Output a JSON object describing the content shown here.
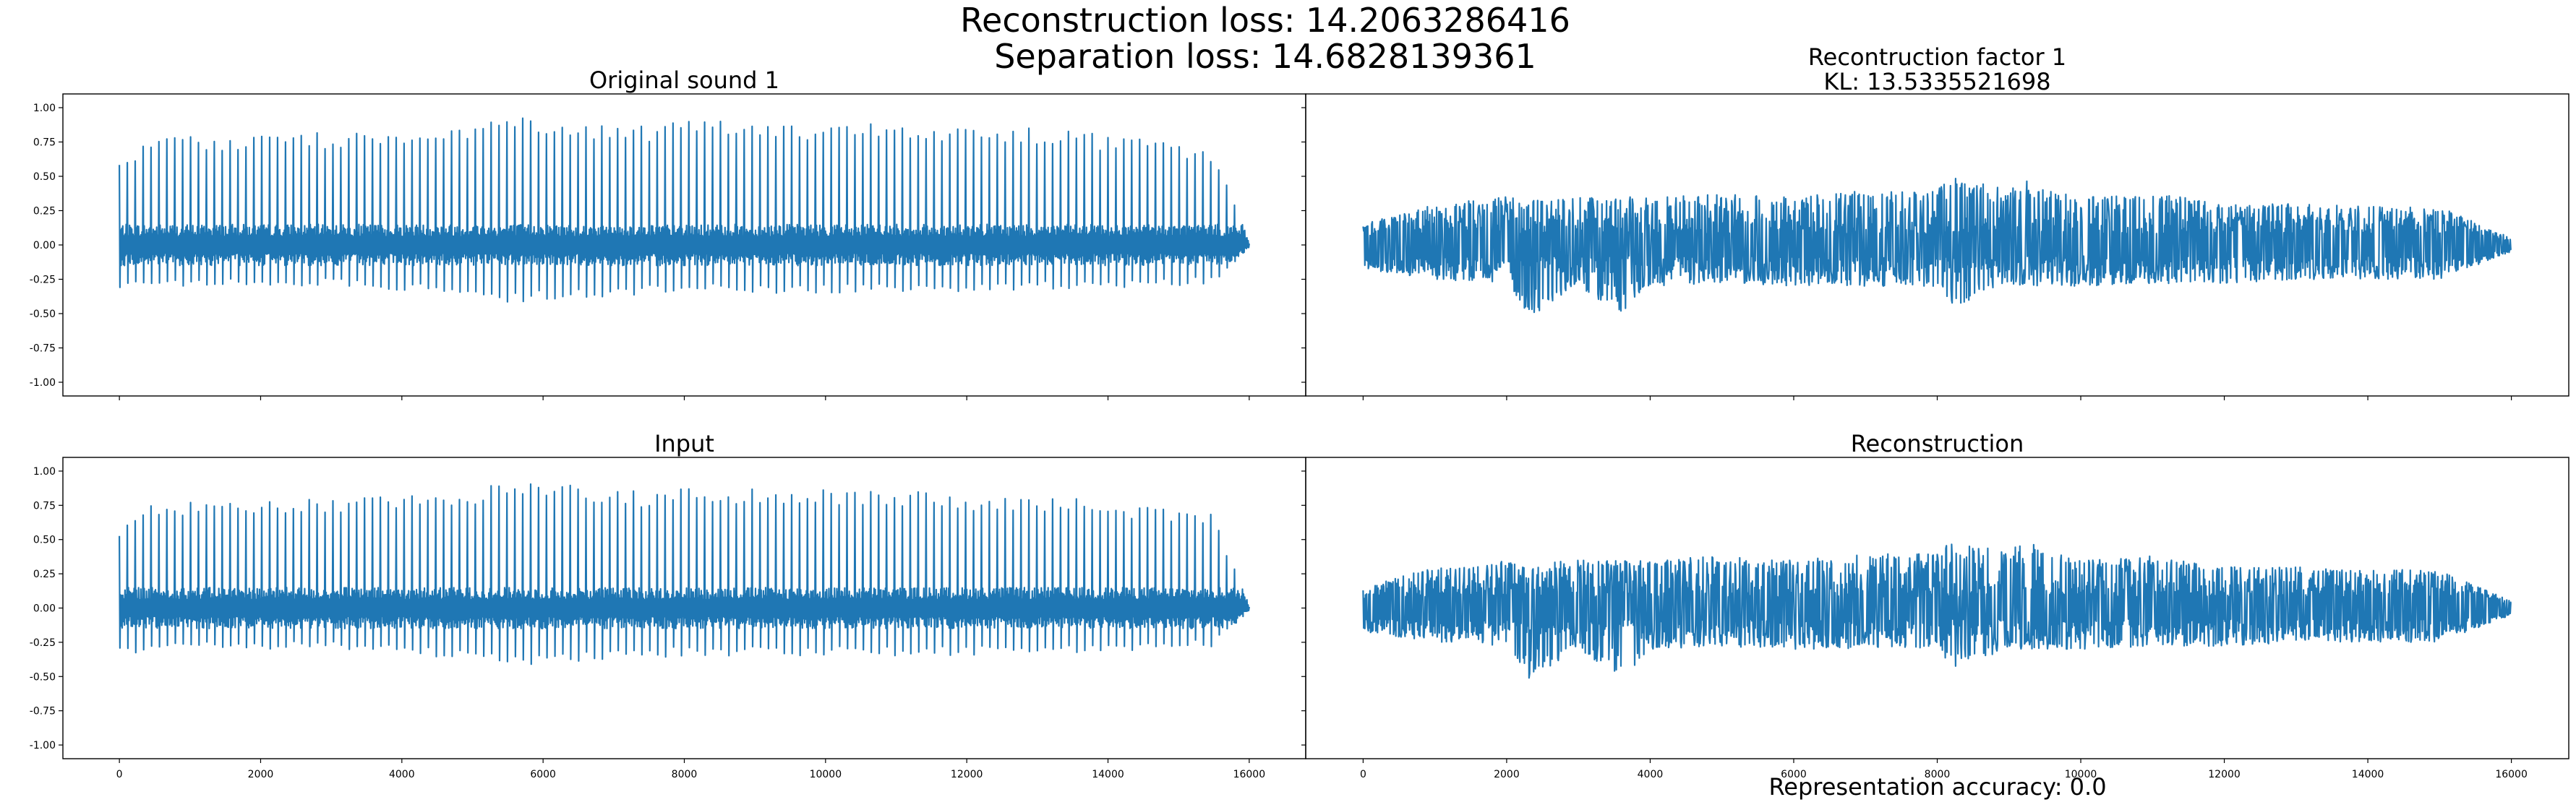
{
  "figure": {
    "suptitle_line1": "Reconstruction loss: 14.2063286416",
    "suptitle_line2": "Separation loss: 14.6828139361",
    "footer": "Representation accuracy: 0.0",
    "line_color": "#1f77b4"
  },
  "chart_data": [
    {
      "type": "line",
      "title": "Original sound 1",
      "title_line2": "",
      "xlabel": "",
      "ylabel": "",
      "xlim": [
        -800,
        16800
      ],
      "ylim": [
        -1.1,
        1.1
      ],
      "xticks": [
        0,
        2000,
        4000,
        6000,
        8000,
        10000,
        12000,
        14000,
        16000
      ],
      "yticks": [
        1.0,
        0.75,
        0.5,
        0.25,
        0.0,
        -0.25,
        -0.5,
        -0.75,
        -1.0
      ],
      "ytick_labels": [
        "1.00",
        "0.75",
        "0.50",
        "0.25",
        "0.00",
        "-0.25",
        "-0.50",
        "-0.75",
        "-1.00"
      ],
      "show_xtick_labels": false,
      "show_ytick_labels": true,
      "series": [
        {
          "x": [
            0,
            16000
          ],
          "envelope_x": [
            0,
            500,
            1000,
            2000,
            3000,
            4000,
            5000,
            5500,
            6000,
            7000,
            8000,
            9000,
            10000,
            11000,
            12000,
            13000,
            14000,
            15000,
            15500,
            16000
          ],
          "envelope_pos": [
            0.62,
            0.8,
            0.8,
            0.8,
            0.82,
            0.83,
            0.9,
            0.95,
            0.95,
            0.85,
            0.9,
            0.9,
            0.9,
            0.88,
            0.85,
            0.85,
            0.8,
            0.75,
            0.7,
            0.02
          ],
          "envelope_neg": [
            -0.36,
            -0.3,
            -0.3,
            -0.3,
            -0.3,
            -0.33,
            -0.38,
            -0.45,
            -0.4,
            -0.38,
            -0.35,
            -0.35,
            -0.35,
            -0.35,
            -0.35,
            -0.33,
            -0.32,
            -0.3,
            -0.28,
            -0.02
          ],
          "band": 0.15,
          "spike_period": 108
        }
      ]
    },
    {
      "type": "line",
      "title": "Recontruction factor 1",
      "title_line2": "KL: 13.5335521698",
      "xlabel": "",
      "ylabel": "",
      "xlim": [
        -800,
        16800
      ],
      "ylim": [
        -1.1,
        1.1
      ],
      "xticks": [
        0,
        2000,
        4000,
        6000,
        8000,
        10000,
        12000,
        14000,
        16000
      ],
      "yticks": [
        1.0,
        0.75,
        0.5,
        0.25,
        0.0,
        -0.25,
        -0.5,
        -0.75,
        -1.0
      ],
      "ytick_labels": [
        "1.00",
        "0.75",
        "0.50",
        "0.25",
        "0.00",
        "-0.25",
        "-0.50",
        "-0.75",
        "-1.00"
      ],
      "show_xtick_labels": false,
      "show_ytick_labels": false,
      "series": [
        {
          "x": [
            0,
            16000
          ],
          "envelope_x": [
            0,
            1000,
            2000,
            2300,
            3000,
            3600,
            4000,
            5000,
            6000,
            7000,
            8000,
            8200,
            9000,
            9200,
            10000,
            11000,
            12000,
            13000,
            14000,
            15000,
            16000
          ],
          "envelope_pos": [
            0.15,
            0.3,
            0.35,
            0.32,
            0.35,
            0.35,
            0.35,
            0.38,
            0.35,
            0.4,
            0.4,
            0.5,
            0.4,
            0.5,
            0.35,
            0.38,
            0.3,
            0.3,
            0.28,
            0.28,
            0.05
          ],
          "envelope_neg": [
            -0.18,
            -0.25,
            -0.28,
            -0.53,
            -0.3,
            -0.52,
            -0.3,
            -0.28,
            -0.3,
            -0.3,
            -0.3,
            -0.45,
            -0.3,
            -0.3,
            -0.3,
            -0.28,
            -0.28,
            -0.25,
            -0.25,
            -0.25,
            -0.05
          ],
          "band": 0.2,
          "spike_period": 60
        }
      ]
    },
    {
      "type": "line",
      "title": "Input",
      "title_line2": "",
      "xlabel": "",
      "ylabel": "",
      "xlim": [
        -800,
        16800
      ],
      "ylim": [
        -1.1,
        1.1
      ],
      "xticks": [
        0,
        2000,
        4000,
        6000,
        8000,
        10000,
        12000,
        14000,
        16000
      ],
      "xtick_labels": [
        "0",
        "2000",
        "4000",
        "6000",
        "8000",
        "10000",
        "12000",
        "14000",
        "16000"
      ],
      "yticks": [
        1.0,
        0.75,
        0.5,
        0.25,
        0.0,
        -0.25,
        -0.5,
        -0.75,
        -1.0
      ],
      "ytick_labels": [
        "1.00",
        "0.75",
        "0.50",
        "0.25",
        "0.00",
        "-0.25",
        "-0.50",
        "-0.75",
        "-1.00"
      ],
      "show_xtick_labels": true,
      "show_ytick_labels": true,
      "series": [
        {
          "x": [
            0,
            16000
          ],
          "envelope_x": [
            0,
            500,
            1000,
            2000,
            3000,
            4000,
            5000,
            5500,
            6000,
            7000,
            8000,
            9000,
            10000,
            11000,
            12000,
            13000,
            14000,
            15000,
            15500,
            16000
          ],
          "envelope_pos": [
            0.6,
            0.78,
            0.8,
            0.8,
            0.8,
            0.82,
            0.88,
            0.93,
            0.93,
            0.85,
            0.88,
            0.88,
            0.88,
            0.86,
            0.83,
            0.83,
            0.78,
            0.73,
            0.68,
            0.02
          ],
          "envelope_neg": [
            -0.36,
            -0.3,
            -0.3,
            -0.3,
            -0.3,
            -0.33,
            -0.38,
            -0.44,
            -0.4,
            -0.38,
            -0.35,
            -0.35,
            -0.35,
            -0.35,
            -0.35,
            -0.33,
            -0.32,
            -0.3,
            -0.28,
            -0.02
          ],
          "band": 0.15,
          "spike_period": 108
        }
      ]
    },
    {
      "type": "line",
      "title": "Reconstruction",
      "title_line2": "",
      "xlabel": "",
      "ylabel": "",
      "xlim": [
        -800,
        16800
      ],
      "ylim": [
        -1.1,
        1.1
      ],
      "xticks": [
        0,
        2000,
        4000,
        6000,
        8000,
        10000,
        12000,
        14000,
        16000
      ],
      "xtick_labels": [
        "0",
        "2000",
        "4000",
        "6000",
        "8000",
        "10000",
        "12000",
        "14000",
        "16000"
      ],
      "yticks": [
        1.0,
        0.75,
        0.5,
        0.25,
        0.0,
        -0.25,
        -0.5,
        -0.75,
        -1.0
      ],
      "ytick_labels": [
        "1.00",
        "0.75",
        "0.50",
        "0.25",
        "0.00",
        "-0.25",
        "-0.50",
        "-0.75",
        "-1.00"
      ],
      "show_xtick_labels": true,
      "show_ytick_labels": false,
      "series": [
        {
          "x": [
            0,
            16000
          ],
          "envelope_x": [
            0,
            1000,
            2000,
            2300,
            3000,
            3600,
            4000,
            5000,
            6000,
            7000,
            8000,
            8200,
            9000,
            9200,
            10000,
            11000,
            12000,
            13000,
            14000,
            15000,
            16000
          ],
          "envelope_pos": [
            0.15,
            0.3,
            0.35,
            0.32,
            0.35,
            0.35,
            0.35,
            0.38,
            0.35,
            0.4,
            0.4,
            0.5,
            0.4,
            0.5,
            0.35,
            0.38,
            0.3,
            0.3,
            0.28,
            0.28,
            0.05
          ],
          "envelope_neg": [
            -0.18,
            -0.25,
            -0.28,
            -0.53,
            -0.3,
            -0.52,
            -0.3,
            -0.28,
            -0.3,
            -0.3,
            -0.3,
            -0.45,
            -0.3,
            -0.3,
            -0.3,
            -0.28,
            -0.28,
            -0.25,
            -0.25,
            -0.25,
            -0.05
          ],
          "band": 0.2,
          "spike_period": 60
        }
      ]
    }
  ]
}
